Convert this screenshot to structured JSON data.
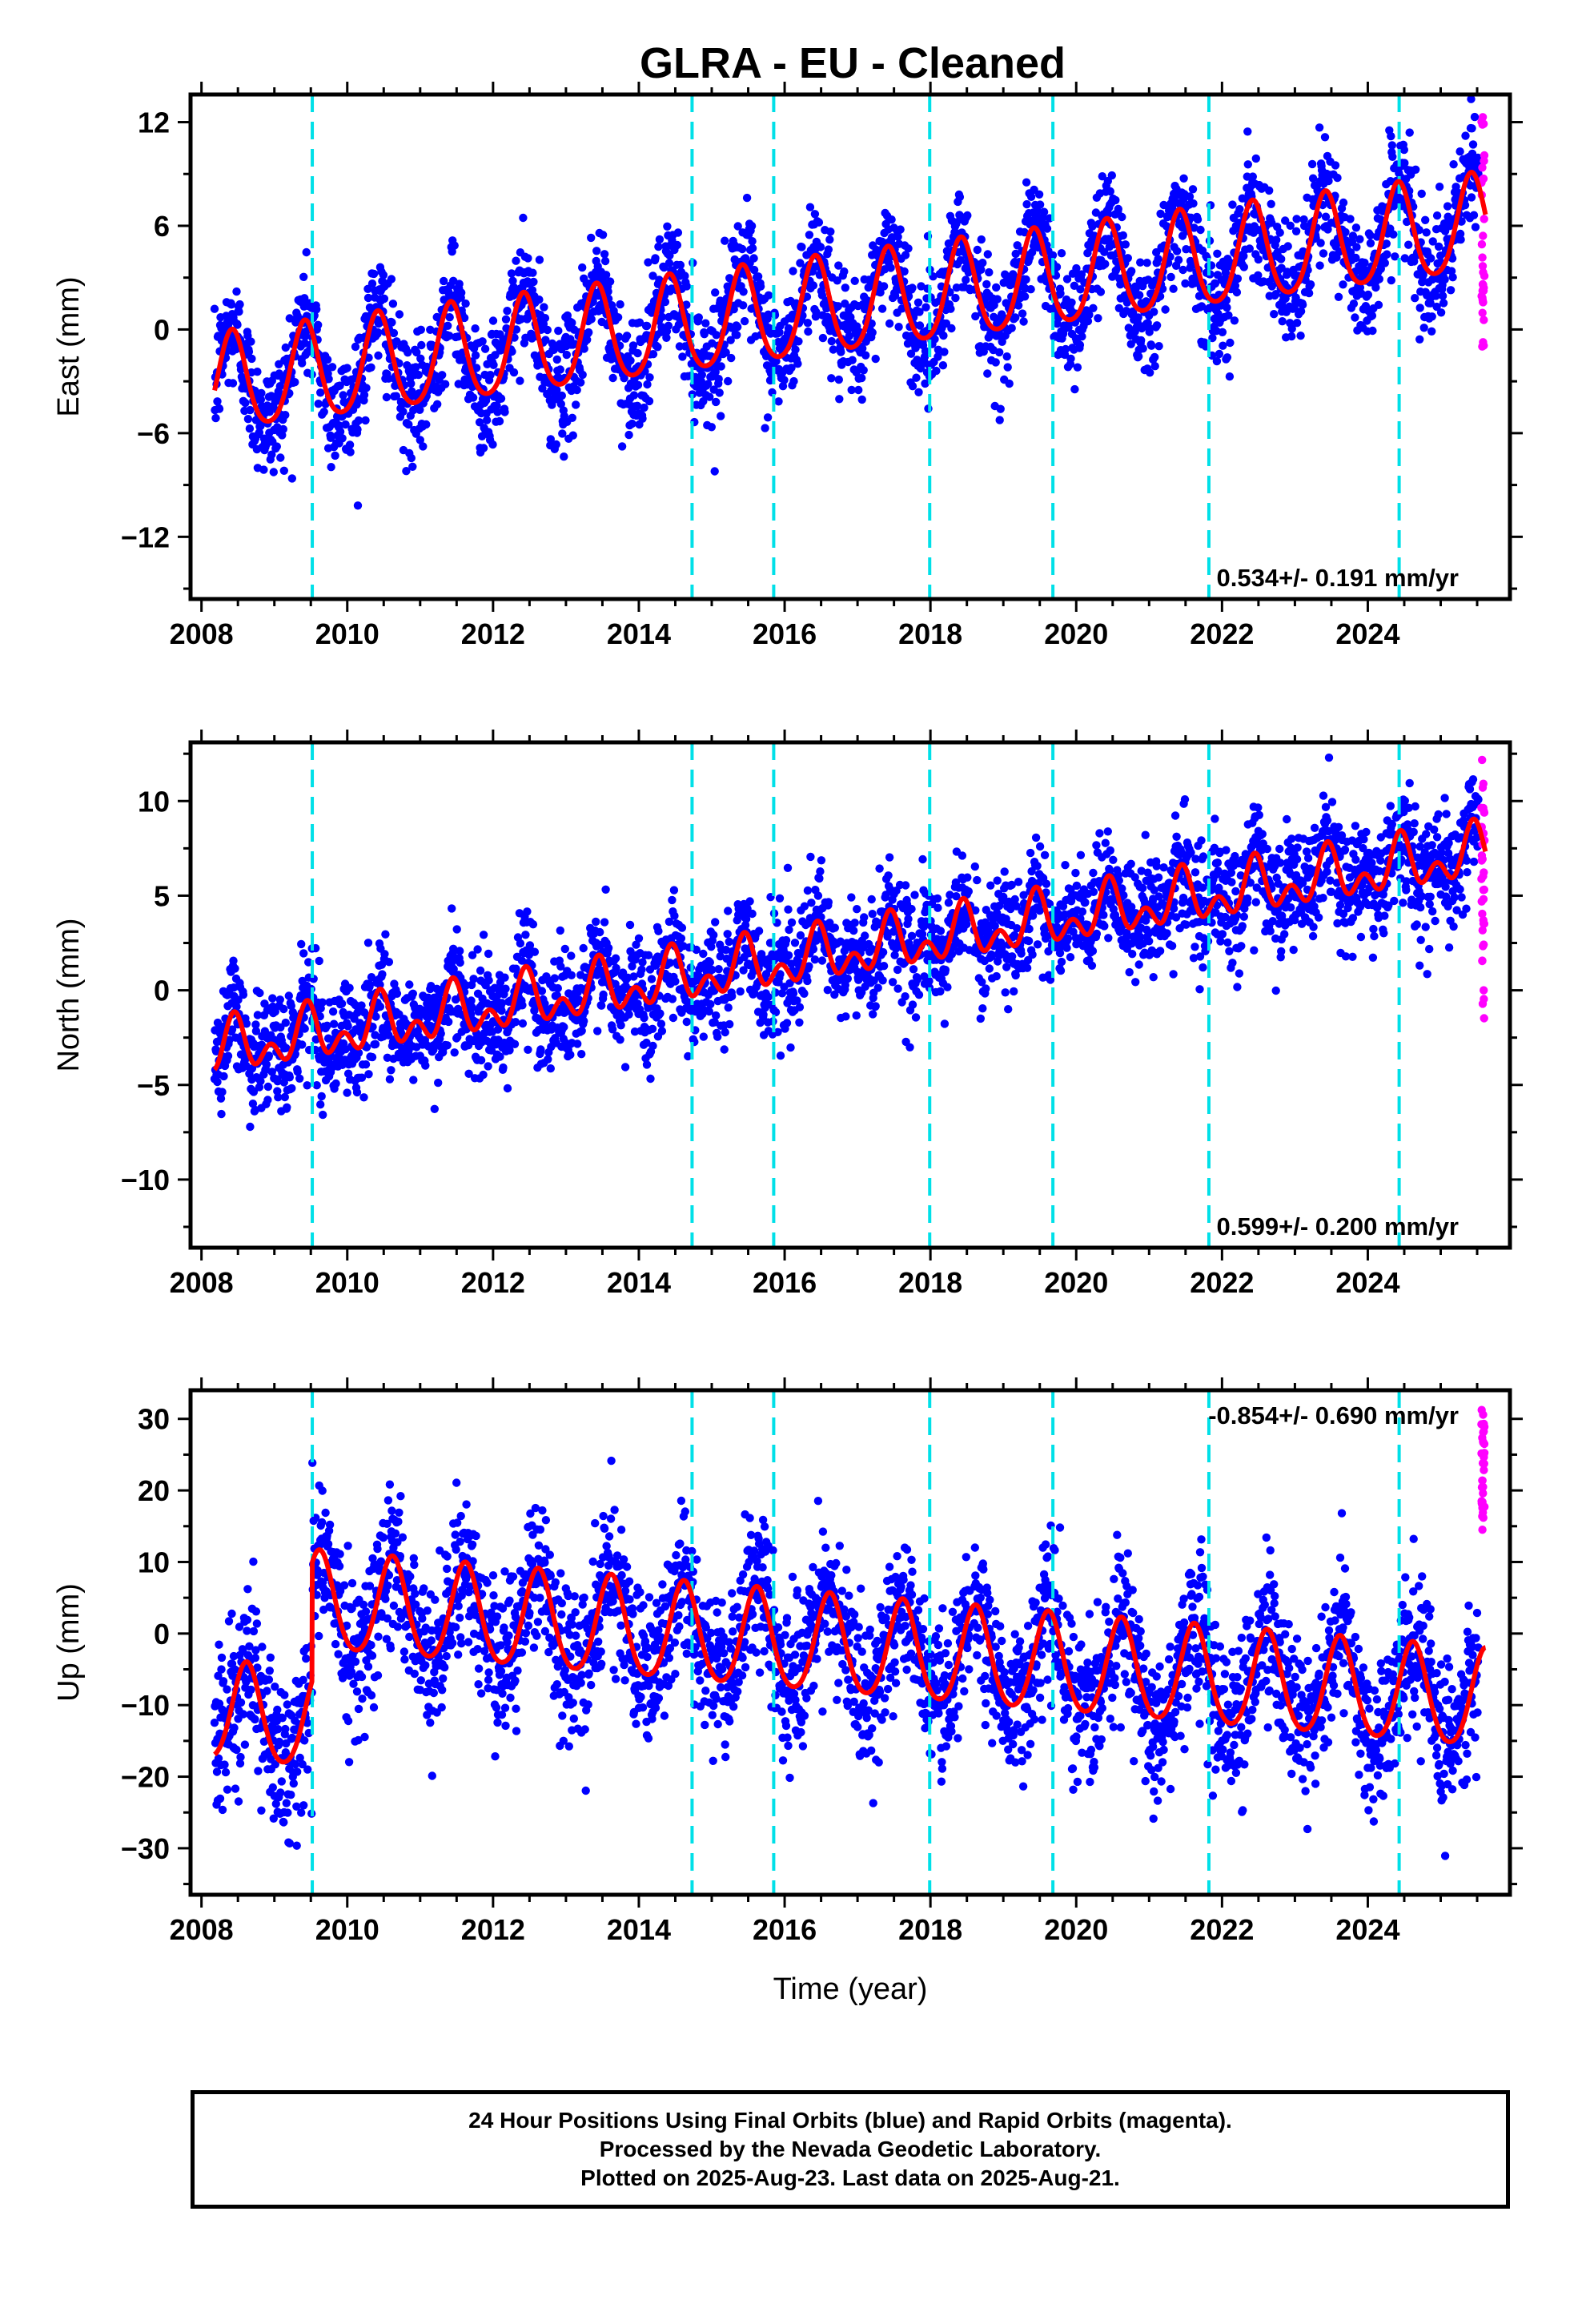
{
  "title": "GLRA  - EU - Cleaned",
  "colors": {
    "final_orbits": "#0000ff",
    "rapid_orbits": "#ff00ff",
    "model": "#ff0000",
    "equipment_change": "#00e0e8",
    "frame": "#000000"
  },
  "caption": {
    "line1": "24 Hour Positions Using Final Orbits (blue) and Rapid Orbits (magenta).",
    "line2": "Processed by the Nevada Geodetic Laboratory.",
    "line3": "Plotted on 2025-Aug-23. Last data on 2025-Aug-21."
  },
  "chart_data": [
    {
      "type": "scatter",
      "name": "east",
      "ylabel": "East (mm)",
      "xlabel": "",
      "xlim": [
        2007.85,
        2025.95
      ],
      "ylim": [
        -15.6,
        13.6
      ],
      "xticks": [
        2008,
        2010,
        2012,
        2014,
        2016,
        2018,
        2020,
        2022,
        2024
      ],
      "yticks": [
        -12,
        -6,
        0,
        6,
        12
      ],
      "rate_label": "0.534+/- 0.191 mm/yr",
      "rate_position": "bottom-right",
      "rate_mm_per_yr": 0.534,
      "model": {
        "offset_at_2008": -3.4,
        "annual_amp": 2.8,
        "annual_phase_peak": 0.42,
        "semiannual_amp": 0.4,
        "steps": []
      },
      "scatter_sigma": 1.7,
      "equipment_changes": [
        2009.52,
        2014.73,
        2015.85,
        2017.99,
        2019.68,
        2021.82,
        2024.43
      ],
      "rapid_range": [
        2025.52,
        2025.64
      ],
      "rapid_y_range": [
        -1.0,
        12.6
      ]
    },
    {
      "type": "scatter",
      "name": "north",
      "ylabel": "North (mm)",
      "xlabel": "",
      "xlim": [
        2007.85,
        2025.95
      ],
      "ylim": [
        -13.6,
        13.1
      ],
      "xticks": [
        2008,
        2010,
        2012,
        2014,
        2016,
        2018,
        2020,
        2022,
        2024
      ],
      "yticks": [
        -10,
        -5,
        0,
        5,
        10
      ],
      "rate_label": "0.599+/- 0.200 mm/yr",
      "rate_position": "bottom-right",
      "rate_mm_per_yr": 0.599,
      "model": {
        "offset_at_2008": -3.3,
        "annual_amp": 1.0,
        "annual_phase_peak": 0.45,
        "semiannual_amp": 0.9,
        "steps": []
      },
      "scatter_sigma": 1.5,
      "equipment_changes": [
        2009.52,
        2014.73,
        2015.85,
        2017.99,
        2019.68,
        2021.82,
        2024.43
      ],
      "rapid_range": [
        2025.52,
        2025.64
      ],
      "rapid_y_range": [
        -1.5,
        12.5
      ]
    },
    {
      "type": "scatter",
      "name": "up",
      "ylabel": "Up (mm)",
      "xlabel": "Time (year)",
      "xlim": [
        2007.85,
        2025.95
      ],
      "ylim": [
        -36.5,
        34.0
      ],
      "xticks": [
        2008,
        2010,
        2012,
        2014,
        2016,
        2018,
        2020,
        2022,
        2024
      ],
      "yticks": [
        -30,
        -20,
        -10,
        0,
        10,
        20,
        30
      ],
      "rate_label": "-0.854+/- 0.690 mm/yr",
      "rate_position": "top-right",
      "rate_mm_per_yr": -0.854,
      "model": {
        "offset_at_2008": -11.0,
        "annual_amp": 6.8,
        "annual_phase_peak": 0.62,
        "semiannual_amp": 0.8,
        "steps": [
          {
            "t": 2009.52,
            "dy": 16.5
          }
        ]
      },
      "scatter_sigma": 5.2,
      "equipment_changes": [
        2009.52,
        2014.73,
        2015.85,
        2017.99,
        2019.68,
        2021.82,
        2024.43
      ],
      "rapid_range": [
        2025.52,
        2025.64
      ],
      "rapid_y_range": [
        14.0,
        32.0
      ]
    }
  ]
}
